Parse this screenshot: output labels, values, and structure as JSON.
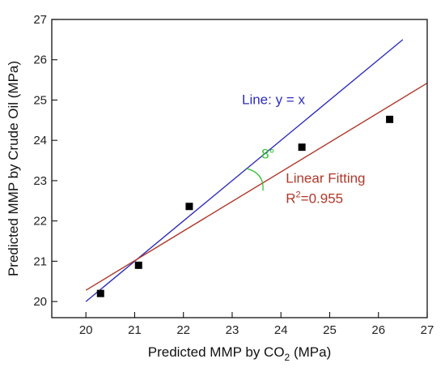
{
  "chart_data": {
    "type": "scatter",
    "xlabel": "Predicted MMP by CO",
    "xlabel_sub": "2",
    "xlabel_unit": " (MPa)",
    "ylabel": "Predicted MMP by Crude Oil (MPa)",
    "xlim": [
      19.3,
      27
    ],
    "ylim": [
      19.6,
      27
    ],
    "xticks": [
      20,
      21,
      22,
      23,
      24,
      25,
      26,
      27
    ],
    "yticks": [
      20,
      21,
      22,
      23,
      24,
      25,
      26,
      27
    ],
    "grid": false,
    "points": [
      {
        "x": 20.3,
        "y": 20.2
      },
      {
        "x": 21.08,
        "y": 20.9
      },
      {
        "x": 22.12,
        "y": 22.36
      },
      {
        "x": 24.43,
        "y": 23.83
      },
      {
        "x": 26.23,
        "y": 24.52
      }
    ],
    "lines": [
      {
        "name": "Line: y = x",
        "color": "#2d2dbd",
        "from": [
          20,
          20
        ],
        "to": [
          26.5,
          26.5
        ]
      },
      {
        "name": "Linear Fitting",
        "color": "#b0382a",
        "from": [
          20,
          20.28
        ],
        "to": [
          27,
          25.42
        ]
      }
    ],
    "annotations": {
      "line_label": "Line: y = x",
      "fit_label": "Linear Fitting",
      "r2_prefix": "R",
      "r2_sup": "2",
      "r2_value": "=0.955",
      "angle_label": "8°"
    },
    "colors": {
      "identity": "#2d2dbd",
      "fit": "#b0382a",
      "angle": "#2ec02e",
      "points": "#000000"
    }
  }
}
